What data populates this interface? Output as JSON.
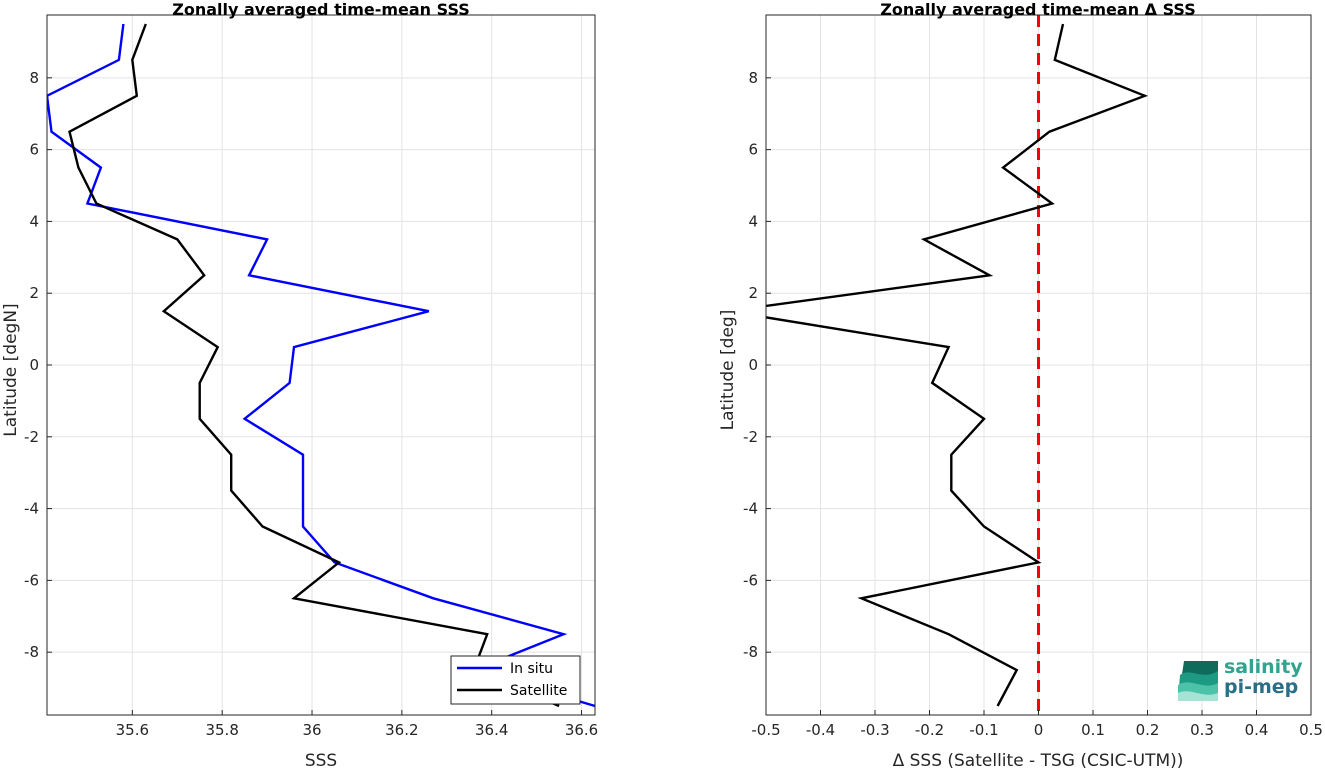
{
  "chart_data": [
    {
      "type": "line",
      "title": "Zonally averaged time-mean SSS",
      "xlabel": "SSS",
      "ylabel": "Latitude [degN]",
      "xlim": [
        35.41,
        36.63
      ],
      "ylim": [
        -9.75,
        9.75
      ],
      "xticks": [
        35.6,
        35.8,
        36,
        36.2,
        36.4,
        36.6
      ],
      "xtick_labels": [
        "35.6",
        "35.8",
        "36",
        "36.2",
        "36.4",
        "36.6"
      ],
      "yticks": [
        -8,
        -6,
        -4,
        -2,
        0,
        2,
        4,
        6,
        8
      ],
      "ytick_labels": [
        "-8",
        "-6",
        "-4",
        "-2",
        "0",
        "2",
        "4",
        "6",
        "8"
      ],
      "grid": true,
      "legend_position": "bottom-right",
      "series": [
        {
          "name": "In situ",
          "color": "#0000ff",
          "points": [
            {
              "x": 35.58,
              "y": 9.5
            },
            {
              "x": 35.57,
              "y": 8.5
            },
            {
              "x": 35.41,
              "y": 7.5
            },
            {
              "x": 35.42,
              "y": 6.5
            },
            {
              "x": 35.53,
              "y": 5.5
            },
            {
              "x": 35.5,
              "y": 4.5
            },
            {
              "x": 35.9,
              "y": 3.5
            },
            {
              "x": 35.86,
              "y": 2.5
            },
            {
              "x": 36.26,
              "y": 1.5
            },
            {
              "x": 35.96,
              "y": 0.5
            },
            {
              "x": 35.95,
              "y": -0.5
            },
            {
              "x": 35.85,
              "y": -1.5
            },
            {
              "x": 35.98,
              "y": -2.5
            },
            {
              "x": 35.98,
              "y": -3.5
            },
            {
              "x": 35.98,
              "y": -4.5
            },
            {
              "x": 36.05,
              "y": -5.5
            },
            {
              "x": 36.27,
              "y": -6.5
            },
            {
              "x": 36.56,
              "y": -7.5
            },
            {
              "x": 36.36,
              "y": -8.5
            },
            {
              "x": 36.63,
              "y": -9.5
            }
          ]
        },
        {
          "name": "Satellite",
          "color": "#000000",
          "points": [
            {
              "x": 35.63,
              "y": 9.5
            },
            {
              "x": 35.6,
              "y": 8.5
            },
            {
              "x": 35.61,
              "y": 7.5
            },
            {
              "x": 35.46,
              "y": 6.5
            },
            {
              "x": 35.48,
              "y": 5.5
            },
            {
              "x": 35.52,
              "y": 4.5
            },
            {
              "x": 35.7,
              "y": 3.5
            },
            {
              "x": 35.76,
              "y": 2.5
            },
            {
              "x": 35.67,
              "y": 1.5
            },
            {
              "x": 35.79,
              "y": 0.5
            },
            {
              "x": 35.75,
              "y": -0.5
            },
            {
              "x": 35.75,
              "y": -1.5
            },
            {
              "x": 35.82,
              "y": -2.5
            },
            {
              "x": 35.82,
              "y": -3.5
            },
            {
              "x": 35.89,
              "y": -4.5
            },
            {
              "x": 36.06,
              "y": -5.5
            },
            {
              "x": 35.96,
              "y": -6.5
            },
            {
              "x": 36.39,
              "y": -7.5
            },
            {
              "x": 36.36,
              "y": -8.5
            },
            {
              "x": 36.55,
              "y": -9.5
            }
          ]
        }
      ]
    },
    {
      "type": "line",
      "title": "Zonally averaged time-mean Δ SSS",
      "xlabel": "Δ SSS (Satellite - TSG (CSIC-UTM))",
      "ylabel": "Latitude [deg]",
      "xlim": [
        -0.5,
        0.5
      ],
      "ylim": [
        -9.75,
        9.75
      ],
      "xticks": [
        -0.5,
        -0.4,
        -0.3,
        -0.2,
        -0.1,
        0,
        0.1,
        0.2,
        0.3,
        0.4,
        0.5
      ],
      "xtick_labels": [
        "-0.5",
        "-0.4",
        "-0.3",
        "-0.2",
        "-0.1",
        "0",
        "0.1",
        "0.2",
        "0.3",
        "0.4",
        "0.5"
      ],
      "yticks": [
        -8,
        -6,
        -4,
        -2,
        0,
        2,
        4,
        6,
        8
      ],
      "ytick_labels": [
        "-8",
        "-6",
        "-4",
        "-2",
        "0",
        "2",
        "4",
        "6",
        "8"
      ],
      "grid": true,
      "reference_line": {
        "x": 0,
        "color": "#ff0000",
        "style": "dashed"
      },
      "series": [
        {
          "name": "",
          "color": "#000000",
          "points": [
            {
              "x": 0.045,
              "y": 9.5
            },
            {
              "x": 0.03,
              "y": 8.5
            },
            {
              "x": 0.195,
              "y": 7.5
            },
            {
              "x": 0.02,
              "y": 6.5
            },
            {
              "x": -0.065,
              "y": 5.5
            },
            {
              "x": 0.025,
              "y": 4.5
            },
            {
              "x": -0.21,
              "y": 3.5
            },
            {
              "x": -0.09,
              "y": 2.5
            },
            {
              "x": -0.57,
              "y": 1.5
            },
            {
              "x": -0.165,
              "y": 0.5
            },
            {
              "x": -0.195,
              "y": -0.5
            },
            {
              "x": -0.1,
              "y": -1.5
            },
            {
              "x": -0.16,
              "y": -2.5
            },
            {
              "x": -0.16,
              "y": -3.5
            },
            {
              "x": -0.1,
              "y": -4.5
            },
            {
              "x": 0.0,
              "y": -5.5
            },
            {
              "x": -0.325,
              "y": -6.5
            },
            {
              "x": -0.165,
              "y": -7.5
            },
            {
              "x": -0.04,
              "y": -8.5
            },
            {
              "x": -0.075,
              "y": -9.5
            }
          ]
        }
      ]
    }
  ],
  "logo": {
    "line1": "salinity",
    "line2": "pi-mep"
  }
}
